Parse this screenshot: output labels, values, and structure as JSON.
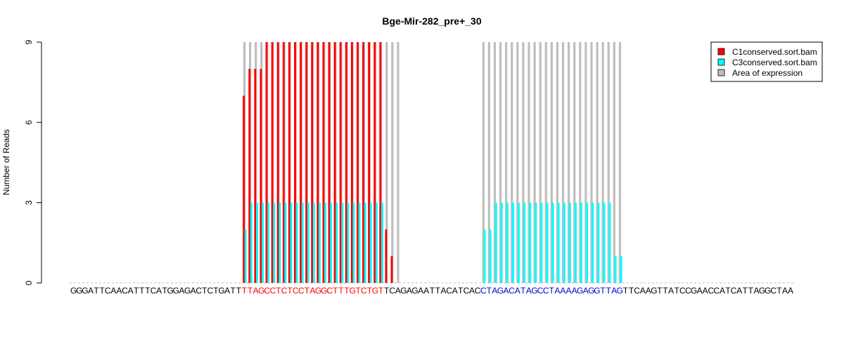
{
  "chart_data": {
    "type": "bar",
    "title": "Bge-Mir-282_pre+_30",
    "ylabel": "Number of Reads",
    "xlabel": "",
    "ylim": [
      0,
      9
    ],
    "yticks": [
      0,
      3,
      6,
      9
    ],
    "grid": false,
    "legend_position": "top-right",
    "sequence": "GGGATTCAACATTTCATGGAGACTCTGATTTTAGCCTCTCCTAGGCTTTGTCTGTTCAGAGAATTACATCACTAGACATAGCCTAAAAGAGGTTAGTTCAAGTTATCCGAACCATCATTAGGCTAA",
    "sequence_segments": [
      {
        "text": "GGGATTCAACATTTCATGGAGACTCTGATT",
        "color": "#000000"
      },
      {
        "text": "TTAGCCTCTCCTAGGCTTTGTCTGT",
        "color": "#ff0000"
      },
      {
        "text": "TCAGAGAATTACATCAC",
        "color": "#000000"
      },
      {
        "text": "CTAGACATAGCCTAAAAGAGGTTAG",
        "color": "#0000cd"
      },
      {
        "text": "TTCAAGTTATCCGAACCATCATTAGGCTAA",
        "color": "#000000"
      }
    ],
    "position_range": [
      1,
      127
    ],
    "expression_areas": [
      {
        "start": 31,
        "end": 58,
        "value": 9
      },
      {
        "start": 73,
        "end": 97,
        "value": 9
      }
    ],
    "series": [
      {
        "name": "C1conserved.sort.bam",
        "color": "#ff0000",
        "points": [
          [
            31,
            7
          ],
          [
            32,
            8
          ],
          [
            33,
            8
          ],
          [
            34,
            8
          ],
          [
            35,
            9
          ],
          [
            36,
            9
          ],
          [
            37,
            9
          ],
          [
            38,
            9
          ],
          [
            39,
            9
          ],
          [
            40,
            9
          ],
          [
            41,
            9
          ],
          [
            42,
            9
          ],
          [
            43,
            9
          ],
          [
            44,
            9
          ],
          [
            45,
            9
          ],
          [
            46,
            9
          ],
          [
            47,
            9
          ],
          [
            48,
            9
          ],
          [
            49,
            9
          ],
          [
            50,
            9
          ],
          [
            51,
            9
          ],
          [
            52,
            9
          ],
          [
            53,
            9
          ],
          [
            54,
            9
          ],
          [
            55,
            9
          ],
          [
            56,
            2
          ],
          [
            57,
            1
          ]
        ]
      },
      {
        "name": "C3conserved.sort.bam",
        "color": "#00ffff",
        "points": [
          [
            31,
            2
          ],
          [
            32,
            3
          ],
          [
            33,
            3
          ],
          [
            34,
            3
          ],
          [
            35,
            3
          ],
          [
            36,
            3
          ],
          [
            37,
            3
          ],
          [
            38,
            3
          ],
          [
            39,
            3
          ],
          [
            40,
            3
          ],
          [
            41,
            3
          ],
          [
            42,
            3
          ],
          [
            43,
            3
          ],
          [
            44,
            3
          ],
          [
            45,
            3
          ],
          [
            46,
            3
          ],
          [
            47,
            3
          ],
          [
            48,
            3
          ],
          [
            49,
            3
          ],
          [
            50,
            3
          ],
          [
            51,
            3
          ],
          [
            52,
            3
          ],
          [
            53,
            3
          ],
          [
            54,
            3
          ],
          [
            55,
            3
          ],
          [
            73,
            2
          ],
          [
            74,
            2
          ],
          [
            75,
            3
          ],
          [
            76,
            3
          ],
          [
            77,
            3
          ],
          [
            78,
            3
          ],
          [
            79,
            3
          ],
          [
            80,
            3
          ],
          [
            81,
            3
          ],
          [
            82,
            3
          ],
          [
            83,
            3
          ],
          [
            84,
            3
          ],
          [
            85,
            3
          ],
          [
            86,
            3
          ],
          [
            87,
            3
          ],
          [
            88,
            3
          ],
          [
            89,
            3
          ],
          [
            90,
            3
          ],
          [
            91,
            3
          ],
          [
            92,
            3
          ],
          [
            93,
            3
          ],
          [
            94,
            3
          ],
          [
            95,
            3
          ],
          [
            96,
            1
          ],
          [
            97,
            1
          ]
        ]
      }
    ],
    "legend": [
      {
        "label": "C1conserved.sort.bam",
        "color": "#ff0000"
      },
      {
        "label": "C3conserved.sort.bam",
        "color": "#00ffff"
      },
      {
        "label": "Area of expression",
        "color": "#bebebe"
      }
    ]
  }
}
